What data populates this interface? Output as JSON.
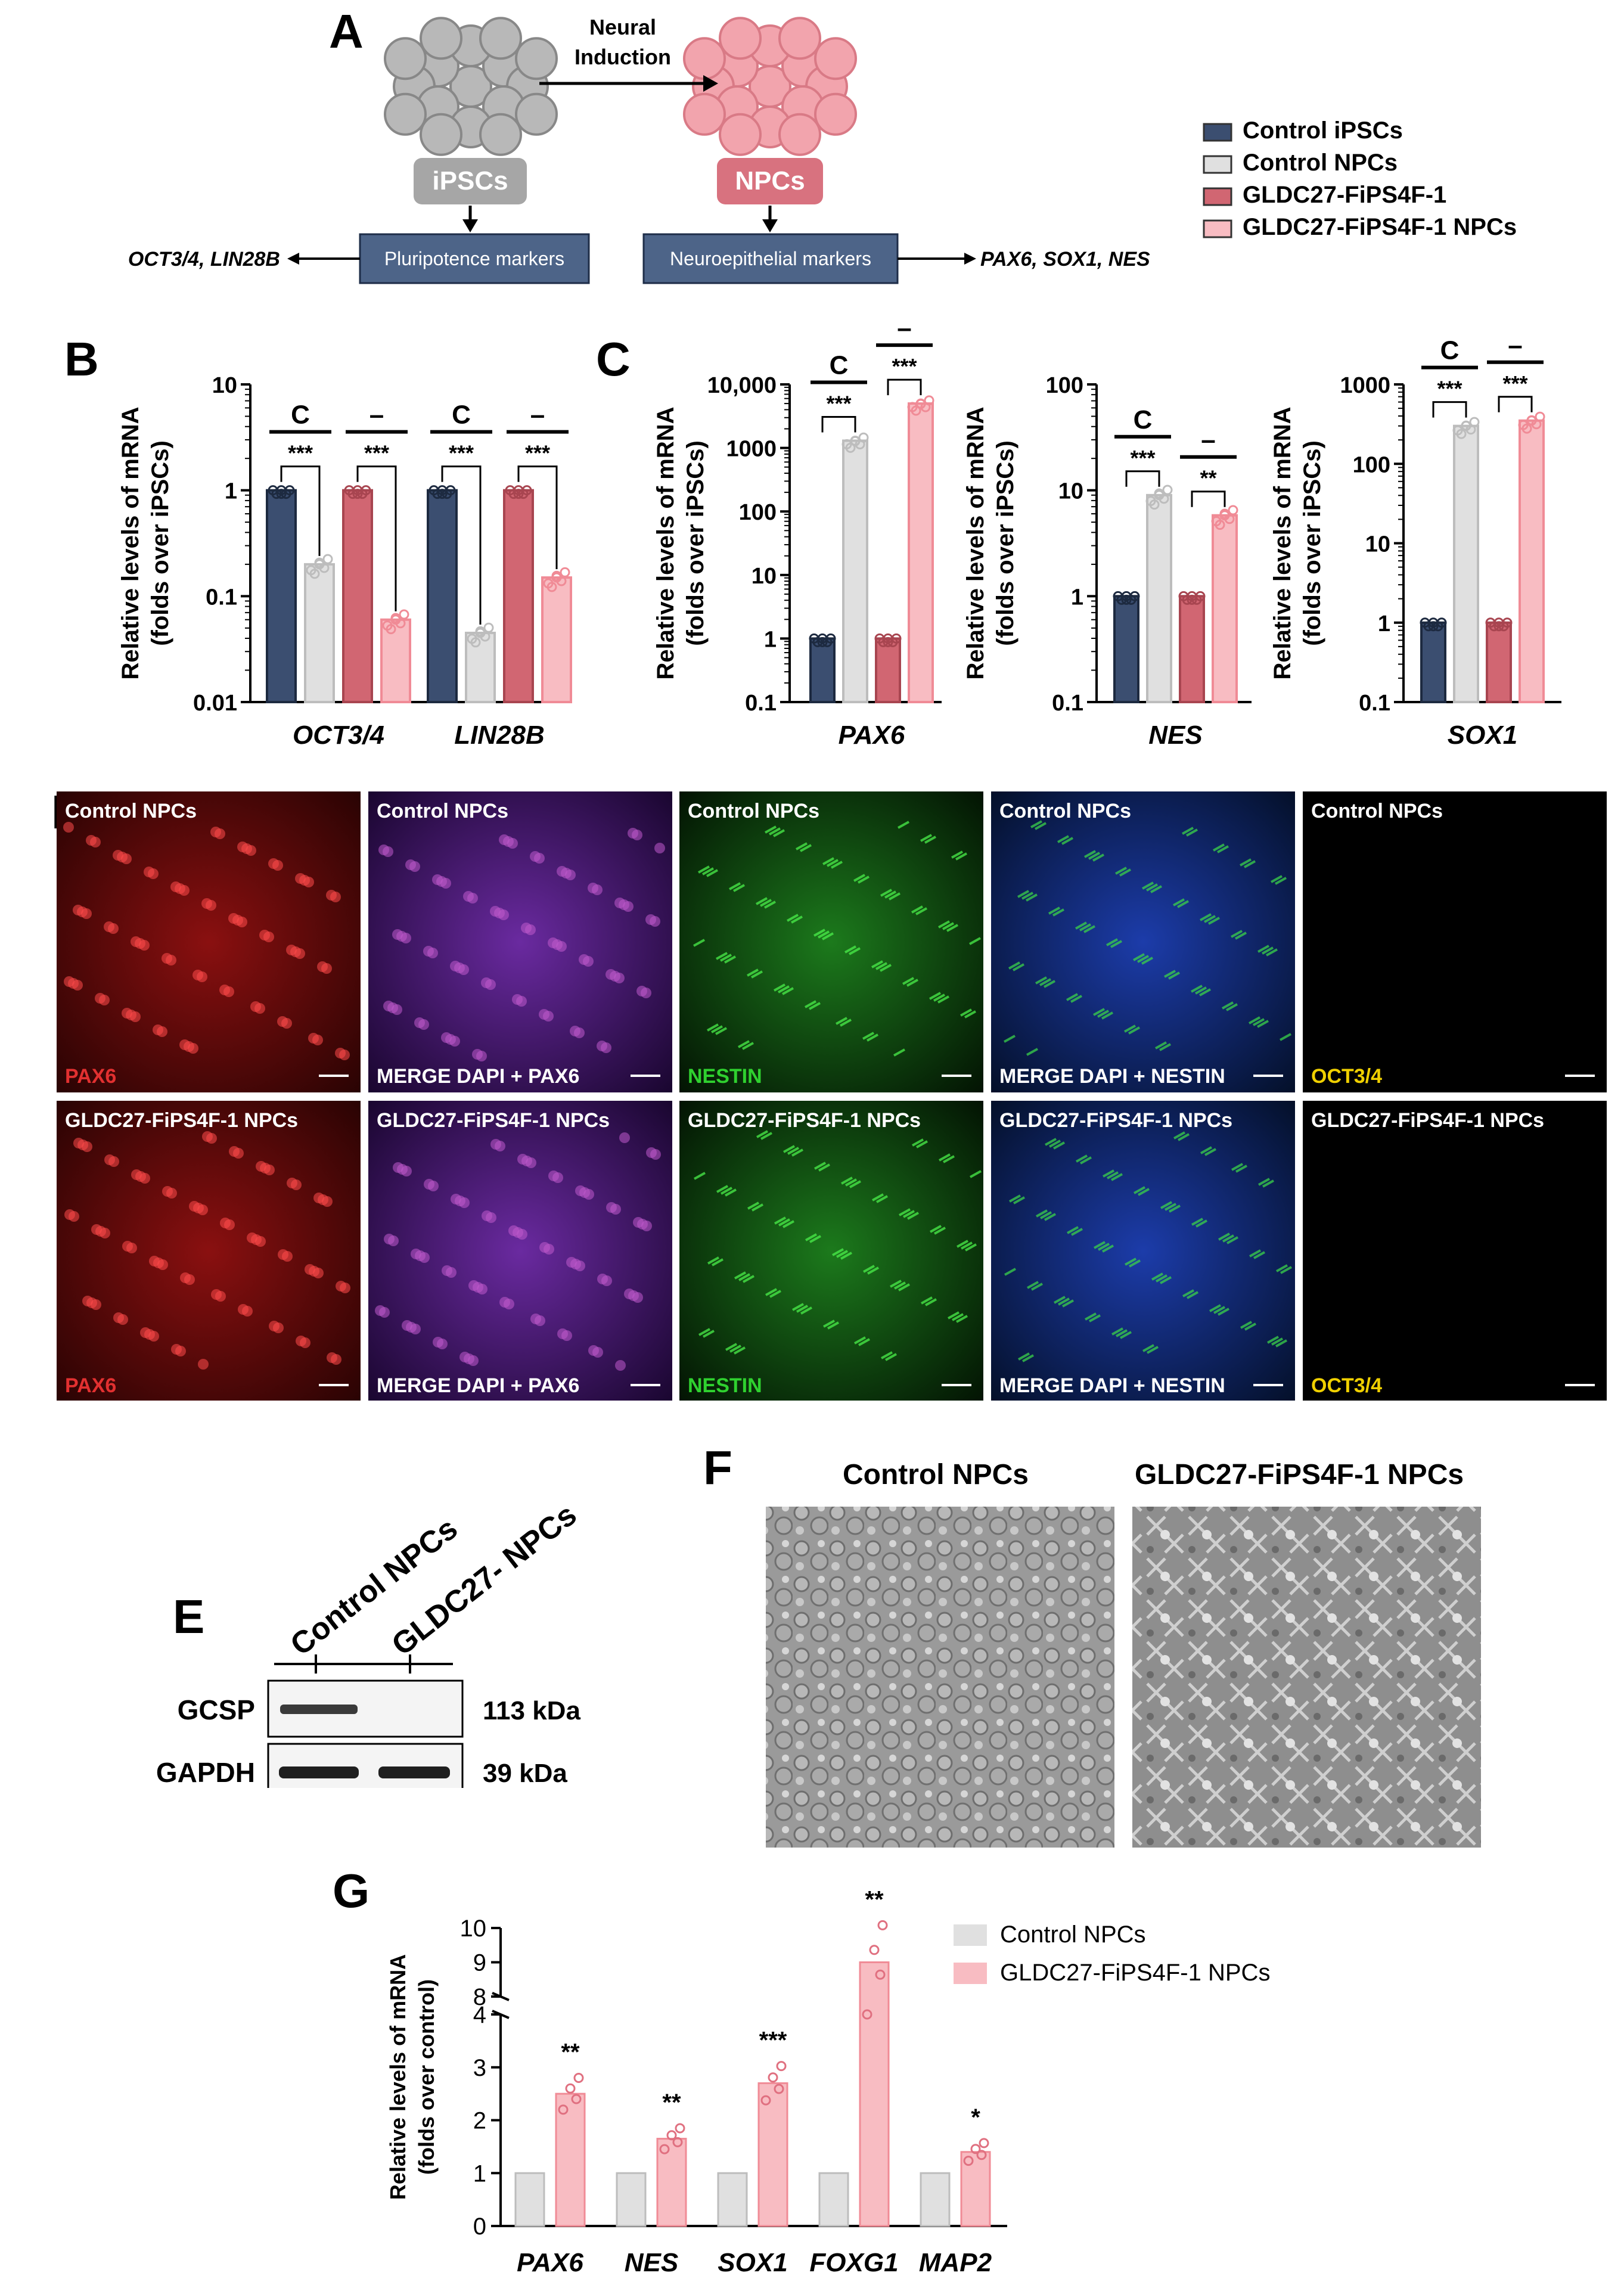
{
  "panels": {
    "a": "A",
    "b": "B",
    "c": "C",
    "d": "D",
    "e": "E",
    "f": "F",
    "g": "G"
  },
  "panel_a": {
    "left_cell": "iPSCs",
    "right_cell": "NPCs",
    "arrow_label_line1": "Neural",
    "arrow_label_line2": "Induction",
    "left_box": "Pluripotence markers",
    "right_box": "Neuroepithelial markers",
    "left_genes": "OCT3/4, LIN28B",
    "right_genes": "PAX6, SOX1, NES"
  },
  "legend_main": [
    {
      "label": "Control iPSCs",
      "color": "#3b4e70"
    },
    {
      "label": "Control NPCs",
      "color": "#e0e0e0"
    },
    {
      "label": "GLDC27-FiPS4F-1",
      "color": "#d16672"
    },
    {
      "label": "GLDC27-FiPS4F-1 NPCs",
      "color": "#f8bcc2"
    }
  ],
  "colors": {
    "ctrl_ipsc": "#3b4e70",
    "ctrl_npc": "#e0e0e0",
    "gldc_ipsc": "#d16672",
    "gldc_npc": "#f8bcc2",
    "box_fill": "#4d6488",
    "cell_grey": "#b8b8b8",
    "cell_pink": "#f2a4ad"
  },
  "ylabel_line1": "Relative levels of mRNA",
  "ylabel_line2": "(folds over iPSCs)",
  "chart_data": [
    {
      "id": "B",
      "type": "bar",
      "scale": "log",
      "categories": [
        "OCT3/4",
        "LIN28B"
      ],
      "ylim": [
        0.01,
        10
      ],
      "yticks": [
        "0.01",
        "0.1",
        "1",
        "10"
      ],
      "series": [
        {
          "name": "Control iPSCs",
          "values": [
            1,
            1
          ]
        },
        {
          "name": "Control NPCs",
          "values": [
            0.2,
            0.045
          ]
        },
        {
          "name": "GLDC27-FiPS4F-1",
          "values": [
            1,
            1
          ]
        },
        {
          "name": "GLDC27-FiPS4F-1 NPCs",
          "values": [
            0.06,
            0.15
          ]
        }
      ],
      "group_labels": [
        "C",
        "–",
        "C",
        "–"
      ],
      "significance": [
        "***",
        "***",
        "***",
        "***"
      ]
    },
    {
      "id": "C1",
      "type": "bar",
      "scale": "log",
      "categories": [
        "PAX6"
      ],
      "ylim": [
        0.1,
        10000
      ],
      "yticks": [
        "0.1",
        "1",
        "10",
        "100",
        "1000",
        "10,000"
      ],
      "series": [
        {
          "name": "Control iPSCs",
          "values": [
            1
          ]
        },
        {
          "name": "Control NPCs",
          "values": [
            1300
          ]
        },
        {
          "name": "GLDC27-FiPS4F-1",
          "values": [
            1
          ]
        },
        {
          "name": "GLDC27-FiPS4F-1 NPCs",
          "values": [
            5000
          ]
        }
      ],
      "group_labels": [
        "C",
        "–"
      ],
      "significance": [
        "***",
        "***"
      ]
    },
    {
      "id": "C2",
      "type": "bar",
      "scale": "log",
      "categories": [
        "NES"
      ],
      "ylim": [
        0.1,
        100
      ],
      "yticks": [
        "0.1",
        "1",
        "10",
        "100"
      ],
      "series": [
        {
          "name": "Control iPSCs",
          "values": [
            1
          ]
        },
        {
          "name": "Control NPCs",
          "values": [
            9
          ]
        },
        {
          "name": "GLDC27-FiPS4F-1",
          "values": [
            1
          ]
        },
        {
          "name": "GLDC27-FiPS4F-1 NPCs",
          "values": [
            5.8
          ]
        }
      ],
      "group_labels": [
        "C",
        "–"
      ],
      "significance": [
        "***",
        "**"
      ]
    },
    {
      "id": "C3",
      "type": "bar",
      "scale": "log",
      "categories": [
        "SOX1"
      ],
      "ylim": [
        0.1,
        1000
      ],
      "yticks": [
        "0.1",
        "1",
        "10",
        "100",
        "1000"
      ],
      "series": [
        {
          "name": "Control iPSCs",
          "values": [
            1
          ]
        },
        {
          "name": "Control NPCs",
          "values": [
            300
          ]
        },
        {
          "name": "GLDC27-FiPS4F-1",
          "values": [
            1
          ]
        },
        {
          "name": "GLDC27-FiPS4F-1 NPCs",
          "values": [
            350
          ]
        }
      ],
      "group_labels": [
        "C",
        "–"
      ],
      "significance": [
        "***",
        "***"
      ]
    },
    {
      "id": "G",
      "type": "bar",
      "scale": "broken-linear",
      "categories": [
        "PAX6",
        "NES",
        "SOX1",
        "FOXG1",
        "MAP2"
      ],
      "yticks": [
        "0",
        "1",
        "2",
        "3",
        "4",
        "8",
        "9",
        "10"
      ],
      "ylabel_line1": "Relative levels of mRNA",
      "ylabel_line2": "(folds over control)",
      "series": [
        {
          "name": "Control NPCs",
          "values": [
            1,
            1,
            1,
            1,
            1
          ]
        },
        {
          "name": "GLDC27-FiPS4F-1 NPCs",
          "values": [
            2.5,
            1.65,
            2.7,
            9.0,
            1.4
          ]
        }
      ],
      "significance": [
        "**",
        "**",
        "***",
        "**",
        "*"
      ]
    }
  ],
  "panel_d": {
    "row1_title": "Control NPCs",
    "row2_title": "GLDC27-FiPS4F-1 NPCs",
    "labels": [
      "PAX6",
      "MERGE DAPI + PAX6",
      "NESTIN",
      "MERGE DAPI + NESTIN",
      "OCT3/4"
    ]
  },
  "panel_e": {
    "lanes": [
      "Control NPCs",
      "GLDC27- NPCs"
    ],
    "rows": [
      {
        "protein": "GCSP",
        "size": "113 kDa"
      },
      {
        "protein": "GAPDH",
        "size": "39 kDa"
      }
    ]
  },
  "panel_f": {
    "titles": [
      "Control NPCs",
      "GLDC27-FiPS4F-1 NPCs"
    ]
  },
  "legend_g": [
    {
      "label": "Control NPCs",
      "color": "#e0e0e0"
    },
    {
      "label": "GLDC27-FiPS4F-1 NPCs",
      "color": "#f8bcc2"
    }
  ]
}
